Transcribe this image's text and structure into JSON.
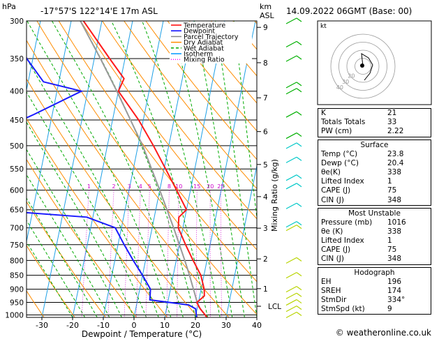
{
  "header": {
    "left_label": "hPa",
    "location": "-17°57'S  122°14'E  17m  ASL",
    "km_label": "km\nASL",
    "datetime": "14.09.2022  06GMT  (Base: 00)"
  },
  "chart_data": {
    "type": "skew-t",
    "title": "-17°57'S  122°14'E  17m  ASL",
    "xlabel": "Dewpoint / Temperature (°C)",
    "ylabel_left": "hPa",
    "ylabel_right": "Mixing Ratio (g/kg)",
    "pressure_ticks": [
      300,
      350,
      400,
      450,
      500,
      550,
      600,
      650,
      700,
      750,
      800,
      850,
      900,
      950,
      1000
    ],
    "temperature_ticks": [
      -30,
      -20,
      -10,
      0,
      10,
      20,
      30,
      40
    ],
    "xlim": [
      -35,
      40
    ],
    "km_ticks": [
      {
        "label": "9",
        "p": 308
      },
      {
        "label": "8",
        "p": 356
      },
      {
        "label": "7",
        "p": 411
      },
      {
        "label": "6",
        "p": 472
      },
      {
        "label": "5",
        "p": 540
      },
      {
        "label": "4",
        "p": 616
      },
      {
        "label": "3",
        "p": 701
      },
      {
        "label": "2",
        "p": 795
      },
      {
        "label": "1",
        "p": 898
      },
      {
        "label": "LCL",
        "p": 965
      }
    ],
    "mixing_ratio_labels": [
      "1",
      "2",
      "3",
      "4",
      "5",
      "8",
      "10",
      "15",
      "20",
      "25"
    ],
    "legend": [
      "Temperature",
      "Dewpoint",
      "Parcel Trajectory",
      "Dry Adiabat",
      "Wet Adiabat",
      "Isotherm",
      "Mixing Ratio"
    ],
    "legend_colors": [
      "#ff0000",
      "#0000ff",
      "#888888",
      "#ff8c00",
      "#00aa00",
      "#0099ff",
      "#ff00ff"
    ],
    "temperature_profile": [
      {
        "p": 1010,
        "t": 23.8
      },
      {
        "p": 975,
        "t": 21.0
      },
      {
        "p": 950,
        "t": 19.5
      },
      {
        "p": 925,
        "t": 21.5
      },
      {
        "p": 900,
        "t": 21.0
      },
      {
        "p": 850,
        "t": 19.0
      },
      {
        "p": 800,
        "t": 15.5
      },
      {
        "p": 750,
        "t": 12.0
      },
      {
        "p": 700,
        "t": 8.5
      },
      {
        "p": 670,
        "t": 8.0
      },
      {
        "p": 650,
        "t": 10.0
      },
      {
        "p": 600,
        "t": 5.5
      },
      {
        "p": 550,
        "t": 0.5
      },
      {
        "p": 500,
        "t": -5.0
      },
      {
        "p": 450,
        "t": -11.5
      },
      {
        "p": 400,
        "t": -20.0
      },
      {
        "p": 380,
        "t": -19.0
      },
      {
        "p": 350,
        "t": -25.0
      },
      {
        "p": 300,
        "t": -36.0
      }
    ],
    "dewpoint_profile": [
      {
        "p": 1010,
        "t": 20.4
      },
      {
        "p": 975,
        "t": 19.5
      },
      {
        "p": 960,
        "t": 17.0
      },
      {
        "p": 940,
        "t": 4.0
      },
      {
        "p": 900,
        "t": 3.5
      },
      {
        "p": 850,
        "t": 0.0
      },
      {
        "p": 800,
        "t": -4.0
      },
      {
        "p": 750,
        "t": -8.0
      },
      {
        "p": 700,
        "t": -12.0
      },
      {
        "p": 670,
        "t": -22.0
      },
      {
        "p": 650,
        "t": -55.0
      },
      {
        "p": 600,
        "t": -57.0
      },
      {
        "p": 550,
        "t": -58.0
      },
      {
        "p": 500,
        "t": -60.0
      },
      {
        "p": 490,
        "t": -63.0
      },
      {
        "p": 440,
        "t": -46.0
      },
      {
        "p": 400,
        "t": -32.0
      },
      {
        "p": 385,
        "t": -45.0
      },
      {
        "p": 350,
        "t": -52.0
      },
      {
        "p": 320,
        "t": -56.0
      },
      {
        "p": 300,
        "t": -62.0
      }
    ],
    "parcel_profile": [
      {
        "p": 1010,
        "t": 23.8
      },
      {
        "p": 965,
        "t": 20.2
      },
      {
        "p": 900,
        "t": 17.5
      },
      {
        "p": 850,
        "t": 15.3
      },
      {
        "p": 800,
        "t": 12.8
      },
      {
        "p": 700,
        "t": 7.0
      },
      {
        "p": 600,
        "t": 0.0
      },
      {
        "p": 500,
        "t": -8.5
      },
      {
        "p": 400,
        "t": -20.5
      },
      {
        "p": 350,
        "t": -28.0
      },
      {
        "p": 300,
        "t": -37.0
      }
    ]
  },
  "hodograph": {
    "unit_label": "kt",
    "ring_labels": [
      "40",
      "30",
      "20"
    ]
  },
  "indices": [
    {
      "label": "K",
      "value": "21"
    },
    {
      "label": "Totals Totals",
      "value": "33"
    },
    {
      "label": "PW (cm)",
      "value": "2.22"
    }
  ],
  "surface": {
    "title": "Surface",
    "rows": [
      {
        "label": "Temp (°C)",
        "value": "23.8"
      },
      {
        "label": "Dewp (°C)",
        "value": "20.4"
      },
      {
        "label": "θe(K)",
        "value": "338"
      },
      {
        "label": "Lifted Index",
        "value": "1"
      },
      {
        "label": "CAPE (J)",
        "value": "75"
      },
      {
        "label": "CIN (J)",
        "value": "348"
      }
    ]
  },
  "most_unstable": {
    "title": "Most Unstable",
    "rows": [
      {
        "label": "Pressure (mb)",
        "value": "1016"
      },
      {
        "label": "θe (K)",
        "value": "338"
      },
      {
        "label": "Lifted Index",
        "value": "1"
      },
      {
        "label": "CAPE (J)",
        "value": "75"
      },
      {
        "label": "CIN (J)",
        "value": "348"
      }
    ]
  },
  "hodograph_table": {
    "title": "Hodograph",
    "rows": [
      {
        "label": "EH",
        "value": "196"
      },
      {
        "label": "SREH",
        "value": "174"
      },
      {
        "label": "StmDir",
        "value": "334°"
      },
      {
        "label": "StmSpd (kt)",
        "value": "9"
      }
    ]
  },
  "footer": {
    "copyright": "© weatheronline.co.uk"
  }
}
